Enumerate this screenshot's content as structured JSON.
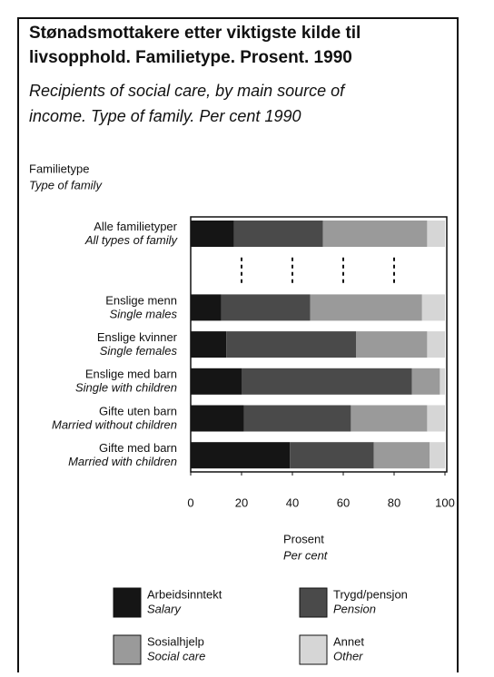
{
  "chart_data": {
    "type": "stacked_bar_horizontal",
    "title": [
      "Stønadsmottakere etter viktigste kilde til",
      "livsopphold. Familietype. Prosent. 1990"
    ],
    "subtitle": [
      "Recipients of social care, by main source of",
      "income. Type of family. Per cent 1990"
    ],
    "y_axis_label": [
      "Familietype",
      "Type of family"
    ],
    "x_axis_label": [
      "Prosent",
      "Per cent"
    ],
    "categories": [
      "Alle familietyper",
      null,
      "Enslige menn",
      "Enslige kvinner",
      "Enslige med barn",
      "Gifte uten barn",
      "Gifte med barn"
    ],
    "categories_en": [
      "All types of family",
      null,
      "Single males",
      "Single females",
      "Single with children",
      "Married without children",
      "Married with children"
    ],
    "series": [
      {
        "name": "Arbeidsinntekt",
        "name_en": "Salary",
        "color": "#151515",
        "values": [
          17,
          null,
          12,
          14,
          20,
          21,
          39
        ]
      },
      {
        "name": "Trygd/pensjon",
        "name_en": "Pension",
        "color": "#4a4a4a",
        "values": [
          35,
          null,
          35,
          51,
          67,
          42,
          33
        ]
      },
      {
        "name": "Sosialhjelp",
        "name_en": "Social care",
        "color": "#9a9a9a",
        "values": [
          41,
          null,
          44,
          28,
          11,
          30,
          22
        ]
      },
      {
        "name": "Annet",
        "name_en": "Other",
        "color": "#d6d6d6",
        "values": [
          7,
          null,
          9,
          7,
          2,
          7,
          6
        ]
      }
    ],
    "xlim": [
      0,
      100
    ],
    "xticks": [
      0,
      20,
      40,
      60,
      80,
      100
    ],
    "grid": true
  }
}
